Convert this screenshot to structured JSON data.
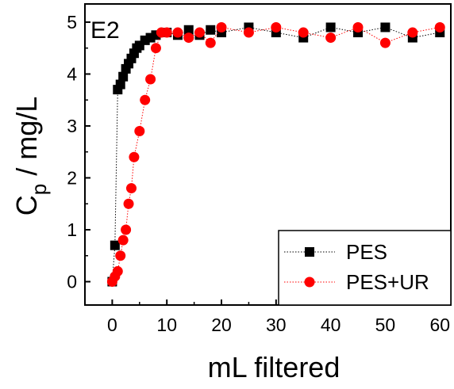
{
  "chart_data": {
    "type": "scatter",
    "panel_label": "E2",
    "xlabel": "mL filtered",
    "ylabel_main": "C",
    "ylabel_sub": "p",
    "ylabel_rest": " / mg/L",
    "xlim": [
      -5,
      62
    ],
    "ylim": [
      -0.45,
      5.35
    ],
    "xticks": [
      0,
      10,
      20,
      30,
      40,
      50,
      60
    ],
    "yticks": [
      0,
      1,
      2,
      3,
      4,
      5
    ],
    "grid": false,
    "legend_position": "bottom-right",
    "series": [
      {
        "name": "PES",
        "marker": "square",
        "color": "#000000",
        "x": [
          0,
          0.5,
          1,
          1.5,
          2,
          2.5,
          3,
          3.5,
          4,
          4.5,
          5,
          6,
          7,
          8,
          10,
          12,
          14,
          16,
          18,
          20,
          25,
          30,
          35,
          40,
          45,
          50,
          55,
          60
        ],
        "y": [
          0,
          0.7,
          3.7,
          3.8,
          3.95,
          4.1,
          4.2,
          4.3,
          4.4,
          4.5,
          4.55,
          4.65,
          4.7,
          4.75,
          4.8,
          4.75,
          4.85,
          4.75,
          4.85,
          4.8,
          4.9,
          4.8,
          4.7,
          4.9,
          4.8,
          4.9,
          4.7,
          4.8
        ]
      },
      {
        "name": "PES+UR",
        "marker": "circle",
        "color": "#ff0000",
        "x": [
          0,
          0.5,
          1,
          1.5,
          2,
          2.5,
          3,
          3.5,
          4,
          5,
          6,
          7,
          8,
          9,
          10,
          12,
          14,
          16,
          18,
          20,
          25,
          30,
          35,
          40,
          45,
          50,
          55,
          60
        ],
        "y": [
          0,
          0.1,
          0.2,
          0.5,
          0.8,
          1.0,
          1.5,
          1.8,
          2.4,
          2.9,
          3.5,
          3.9,
          4.5,
          4.8,
          4.8,
          4.8,
          4.7,
          4.8,
          4.6,
          4.9,
          4.8,
          4.9,
          4.8,
          4.7,
          4.9,
          4.6,
          4.8,
          4.9
        ]
      }
    ]
  }
}
